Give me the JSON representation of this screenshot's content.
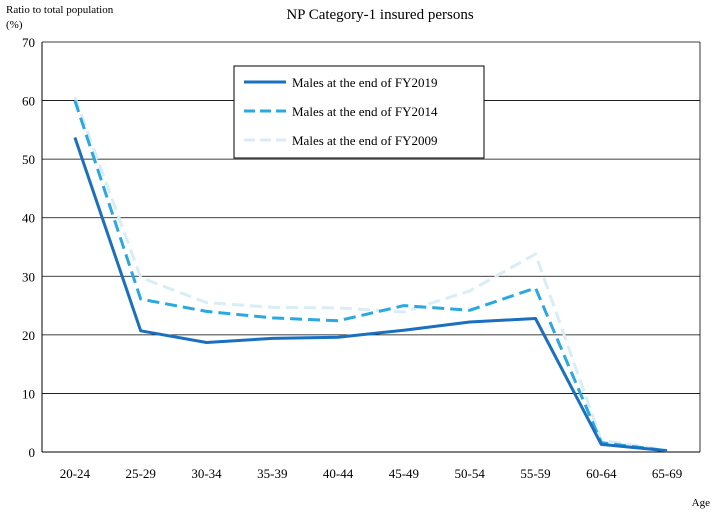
{
  "chart_data": {
    "type": "line",
    "title": "NP Category-1 insured persons",
    "ylabel": "Ratio to total population",
    "yunit": "(%)",
    "xlabel": "Age",
    "categories": [
      "20-24",
      "25-29",
      "30-34",
      "35-39",
      "40-44",
      "45-49",
      "50-54",
      "55-59",
      "60-64",
      "65-69"
    ],
    "ylim": [
      0,
      70
    ],
    "yticks": [
      0,
      10,
      20,
      30,
      40,
      50,
      60,
      70
    ],
    "grid": true,
    "legend_position": "upper-center",
    "series": [
      {
        "name": "Males at the end of FY2019",
        "style": "solid",
        "color": "#1a6fbf",
        "values": [
          53.7,
          20.7,
          18.7,
          19.4,
          19.6,
          20.8,
          22.2,
          22.8,
          1.3,
          0.2
        ]
      },
      {
        "name": "Males at the end of FY2014",
        "style": "dashed",
        "color": "#2aa8e0",
        "values": [
          60.0,
          26.1,
          24.0,
          22.9,
          22.4,
          25.0,
          24.2,
          28.0,
          1.6,
          0.2
        ]
      },
      {
        "name": "Males at the end of FY2009",
        "style": "dashed-light",
        "color": "#d8edf6",
        "values": [
          60.6,
          29.8,
          25.5,
          24.7,
          24.6,
          23.9,
          27.5,
          33.8,
          2.0,
          0.3
        ]
      }
    ]
  }
}
